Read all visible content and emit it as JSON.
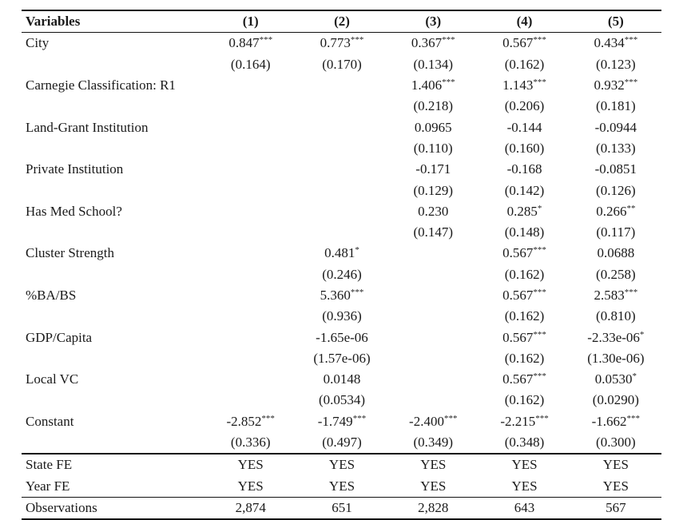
{
  "columns": [
    "Variables",
    "(1)",
    "(2)",
    "(3)",
    "(4)",
    "(5)"
  ],
  "rows": [
    {
      "label": "City",
      "coef": [
        [
          "0.847",
          "***"
        ],
        [
          "0.773",
          "***"
        ],
        [
          "0.367",
          "***"
        ],
        [
          "0.567",
          "***"
        ],
        [
          "0.434",
          "***"
        ]
      ],
      "se": [
        "(0.164)",
        "(0.170)",
        "(0.134)",
        "(0.162)",
        "(0.123)"
      ]
    },
    {
      "label": "Carnegie Classification: R1",
      "coef": [
        [
          "",
          ""
        ],
        [
          "",
          ""
        ],
        [
          "1.406",
          "***"
        ],
        [
          "1.143",
          "***"
        ],
        [
          "0.932",
          "***"
        ]
      ],
      "se": [
        "",
        "",
        "(0.218)",
        "(0.206)",
        "(0.181)"
      ]
    },
    {
      "label": "Land-Grant Institution",
      "coef": [
        [
          "",
          ""
        ],
        [
          "",
          ""
        ],
        [
          "0.0965",
          ""
        ],
        [
          "-0.144",
          ""
        ],
        [
          "-0.0944",
          ""
        ]
      ],
      "se": [
        "",
        "",
        "(0.110)",
        "(0.160)",
        "(0.133)"
      ]
    },
    {
      "label": "Private Institution",
      "coef": [
        [
          "",
          ""
        ],
        [
          "",
          ""
        ],
        [
          "-0.171",
          ""
        ],
        [
          "-0.168",
          ""
        ],
        [
          "-0.0851",
          ""
        ]
      ],
      "se": [
        "",
        "",
        "(0.129)",
        "(0.142)",
        "(0.126)"
      ]
    },
    {
      "label": "Has Med School?",
      "coef": [
        [
          "",
          ""
        ],
        [
          "",
          ""
        ],
        [
          "0.230",
          ""
        ],
        [
          "0.285",
          "*"
        ],
        [
          "0.266",
          "**"
        ]
      ],
      "se": [
        "",
        "",
        "(0.147)",
        "(0.148)",
        "(0.117)"
      ]
    },
    {
      "label": "Cluster Strength",
      "coef": [
        [
          "",
          ""
        ],
        [
          "0.481",
          "*"
        ],
        [
          "",
          ""
        ],
        [
          "0.567",
          "***"
        ],
        [
          "0.0688",
          ""
        ]
      ],
      "se": [
        "",
        "(0.246)",
        "",
        "(0.162)",
        "(0.258)"
      ]
    },
    {
      "label": "%BA/BS",
      "coef": [
        [
          "",
          ""
        ],
        [
          "5.360",
          "***"
        ],
        [
          "",
          ""
        ],
        [
          "0.567",
          "***"
        ],
        [
          "2.583",
          "***"
        ]
      ],
      "se": [
        "",
        "(0.936)",
        "",
        "(0.162)",
        "(0.810)"
      ]
    },
    {
      "label": "GDP/Capita",
      "coef": [
        [
          "",
          ""
        ],
        [
          "-1.65e-06",
          ""
        ],
        [
          "",
          ""
        ],
        [
          "0.567",
          "***"
        ],
        [
          "-2.33e-06",
          "*"
        ]
      ],
      "se": [
        "",
        "(1.57e-06)",
        "",
        "(0.162)",
        "(1.30e-06)"
      ]
    },
    {
      "label": "Local VC",
      "coef": [
        [
          "",
          ""
        ],
        [
          "0.0148",
          ""
        ],
        [
          "",
          ""
        ],
        [
          "0.567",
          "***"
        ],
        [
          "0.0530",
          "*"
        ]
      ],
      "se": [
        "",
        "(0.0534)",
        "",
        "(0.162)",
        "(0.0290)"
      ]
    },
    {
      "label": "Constant",
      "coef": [
        [
          "-2.852",
          "***"
        ],
        [
          "-1.749",
          "***"
        ],
        [
          "-2.400",
          "***"
        ],
        [
          "-2.215",
          "***"
        ],
        [
          "-1.662",
          "***"
        ]
      ],
      "se": [
        "(0.336)",
        "(0.497)",
        "(0.349)",
        "(0.348)",
        "(0.300)"
      ]
    }
  ],
  "fixed_effects": [
    {
      "label": "State FE",
      "values": [
        "YES",
        "YES",
        "YES",
        "YES",
        "YES"
      ]
    },
    {
      "label": "Year FE",
      "values": [
        "YES",
        "YES",
        "YES",
        "YES",
        "YES"
      ]
    }
  ],
  "observations": {
    "label": "Observations",
    "values": [
      "2,874",
      "651",
      "2,828",
      "643",
      "567"
    ]
  }
}
